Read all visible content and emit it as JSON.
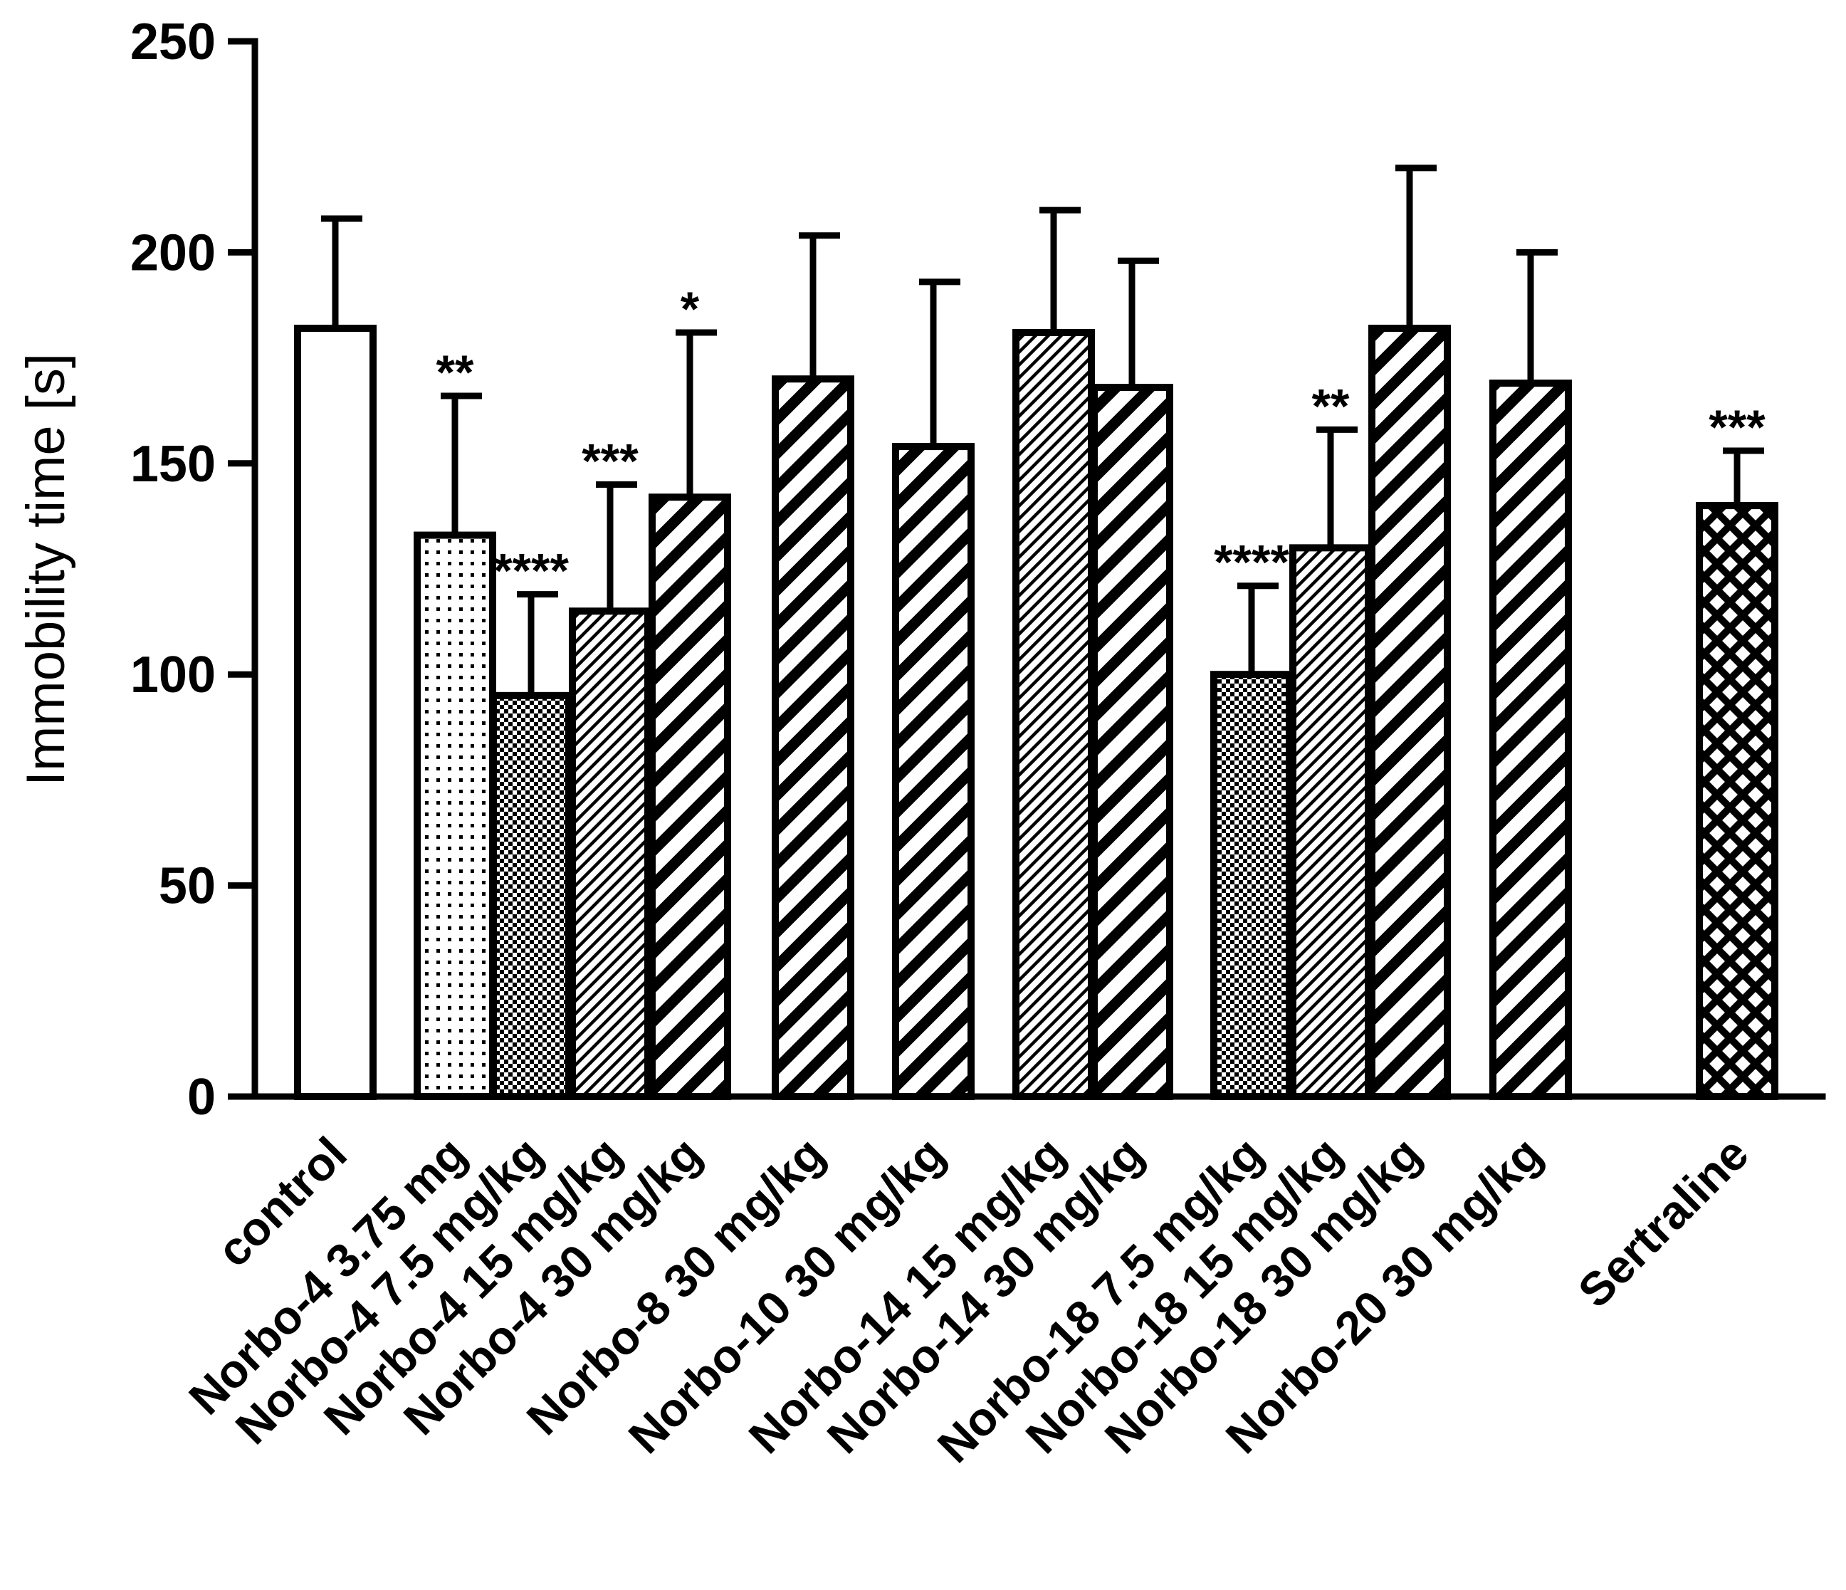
{
  "chart_data": {
    "type": "bar",
    "title": "",
    "xlabel": "",
    "ylabel": "Immobility time [s]",
    "ylim": [
      0,
      250
    ],
    "yticks": [
      0,
      50,
      100,
      150,
      200,
      250
    ],
    "grid": false,
    "categories": [
      "control",
      "Norbo-4 3.75 mg",
      "Norbo-4 7.5 mg/kg",
      "Norbo-4 15 mg/kg",
      "Norbo-4 30 mg/kg",
      "Norbo-8 30 mg/kg",
      "Norbo-10 30 mg/kg",
      "Norbo-14 15 mg/kg",
      "Norbo-14 30 mg/kg",
      "Norbo-18 7.5 mg/kg",
      "Norbo-18 15 mg/kg",
      "Norbo-18 30 mg/kg",
      "Norbo-20 30 mg/kg",
      "Sertraline"
    ],
    "values": [
      182,
      133,
      95,
      115,
      142,
      170,
      154,
      181,
      168,
      100,
      130,
      182,
      169,
      140
    ],
    "errors": [
      26,
      33,
      24,
      30,
      39,
      34,
      39,
      29,
      30,
      21,
      28,
      38,
      31,
      13
    ],
    "significance": [
      "",
      "**",
      "****",
      "***",
      "*",
      "",
      "",
      "",
      "",
      "****",
      "**",
      "",
      "",
      "***"
    ],
    "patterns": [
      "none",
      "dots",
      "checker",
      "fine-diag",
      "diag",
      "diag",
      "diag",
      "fine-diag",
      "diag",
      "checker",
      "fine-diag",
      "diag",
      "diag",
      "crosshatch"
    ]
  }
}
